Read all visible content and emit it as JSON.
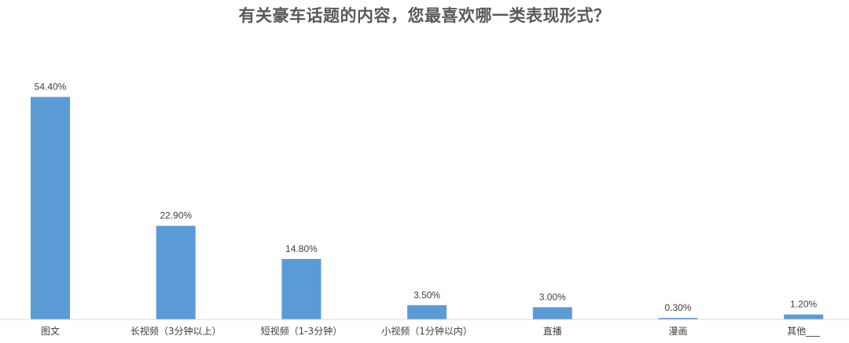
{
  "chart_data": {
    "type": "bar",
    "title": "有关豪车话题的内容，您最喜欢哪一类表现形式？",
    "categories": [
      "图文",
      "长视频（3分钟以上）",
      "短视频（1-3分钟）",
      "小视频（1分钟以内）",
      "直播",
      "漫画",
      "其他___"
    ],
    "values": [
      54.4,
      22.9,
      14.8,
      3.5,
      3.0,
      0.3,
      1.2
    ],
    "value_labels": [
      "54.40%",
      "22.90%",
      "14.80%",
      "3.50%",
      "3.00%",
      "0.30%",
      "1.20%"
    ],
    "unit": "%",
    "ylim": [
      0,
      60
    ],
    "grid": false,
    "legend": "none",
    "bar_color": "#5b9bd5",
    "axis_color": "#d9d9d9"
  }
}
